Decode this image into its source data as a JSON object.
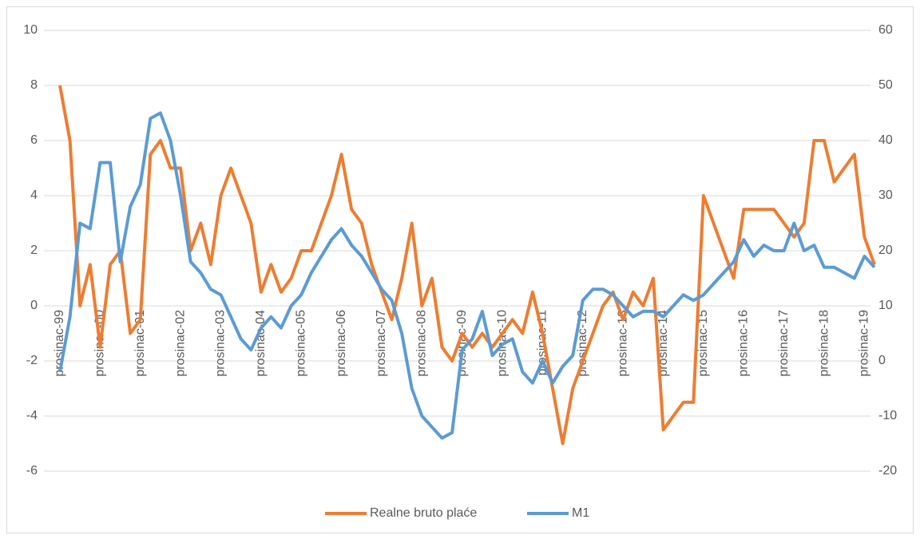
{
  "chart_data": {
    "type": "line",
    "categories": [
      "prosinac-99",
      null,
      null,
      null,
      "prosinac-00",
      null,
      null,
      null,
      "prosinac-01",
      null,
      null,
      null,
      "prosinac-02",
      null,
      null,
      null,
      "prosinac-03",
      null,
      null,
      null,
      "prosinac-04",
      null,
      null,
      null,
      "prosinac-05",
      null,
      null,
      null,
      "prosinac-06",
      null,
      null,
      null,
      "prosinac-07",
      null,
      null,
      null,
      "prosinac-08",
      null,
      null,
      null,
      "prosinac-09",
      null,
      null,
      null,
      "prosinac-10",
      null,
      null,
      null,
      "prosinac-11",
      null,
      null,
      null,
      "prosinac-12",
      null,
      null,
      null,
      "prosinac-13",
      null,
      null,
      null,
      "prosinac-14",
      null,
      null,
      null,
      "prosinac-15",
      null,
      null,
      null,
      "prosinac-16",
      null,
      null,
      null,
      "prosinac-17",
      null,
      null,
      null,
      "prosinac-18",
      null,
      null,
      null,
      "prosinac-19",
      null
    ],
    "series": [
      {
        "name": "Realne bruto plaće",
        "color": "#ed7d31",
        "values": [
          8,
          6,
          0,
          1.5,
          -1.5,
          1.5,
          2,
          -1,
          -0.5,
          5.5,
          6,
          5,
          5,
          2,
          3,
          1.5,
          4,
          5,
          4,
          3,
          0.5,
          1.5,
          0.5,
          1,
          2,
          2,
          3,
          4,
          5.5,
          3.5,
          3,
          1.5,
          0.5,
          -0.5,
          1,
          3,
          0,
          1,
          -1.5,
          -2,
          -1,
          -1.5,
          -1,
          -1.5,
          -1,
          -0.5,
          -1,
          0.5,
          -1,
          -3,
          -5,
          -3,
          -2,
          -1,
          0,
          0.5,
          -0.5,
          0.5,
          0,
          1,
          -4.5,
          -4,
          -3.5,
          -3.5,
          4,
          3,
          2,
          1,
          3.5,
          3.5,
          3.5,
          3.5,
          3,
          2.5,
          3,
          6,
          6,
          4.5,
          5,
          5.5,
          2.5,
          1.5
        ]
      },
      {
        "name": "M1",
        "color": "#5b9bd5",
        "axis": "y2",
        "values": [
          -2,
          8,
          25,
          24,
          36,
          36,
          18,
          28,
          32,
          44,
          45,
          40,
          30,
          18,
          16,
          13,
          12,
          8,
          4,
          2,
          6,
          8,
          6,
          10,
          12,
          16,
          19,
          22,
          24,
          21,
          19,
          16,
          13,
          11,
          5,
          -5,
          -10,
          -12,
          -14,
          -13,
          2,
          4,
          9,
          1,
          3,
          4,
          -2,
          -4,
          0,
          -4,
          -1,
          1,
          11,
          13,
          13,
          12,
          10,
          8,
          9,
          9,
          8,
          10,
          12,
          11,
          12,
          14,
          16,
          18,
          22,
          19,
          21,
          20,
          20,
          25,
          20,
          21,
          17,
          17,
          16,
          15,
          19,
          17
        ]
      }
    ],
    "ylim": [
      -6,
      10
    ],
    "yticks": [
      -6,
      -4,
      -2,
      0,
      2,
      4,
      6,
      8,
      10
    ],
    "y2lim": [
      -20,
      60
    ],
    "y2ticks": [
      -20,
      -10,
      0,
      10,
      20,
      30,
      40,
      50,
      60
    ],
    "grid": true,
    "legend": "bottom"
  }
}
